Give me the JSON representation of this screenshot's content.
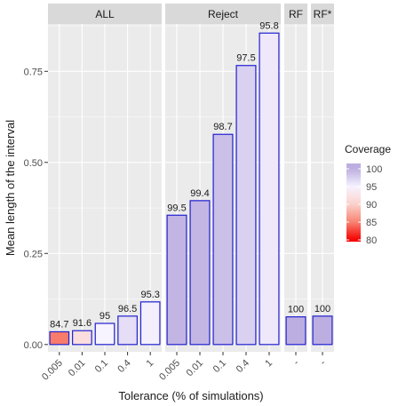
{
  "chart_data": {
    "type": "bar",
    "ylabel": "Mean length of the interval",
    "xlabel": "Tolerance (% of simulations)",
    "ylim": [
      -0.02,
      0.88
    ],
    "yticks": [
      0.0,
      0.25,
      0.5,
      0.75
    ],
    "ytick_labels": [
      "0.00",
      "0.25",
      "0.50",
      "0.75"
    ],
    "grid": true,
    "bar_outline_color": "#2020d0",
    "panel_background": "#ebebeb",
    "strip_background": "#d9d9d9",
    "facets": [
      {
        "label": "ALL",
        "categories": [
          "0.005",
          "0.01",
          "0.1",
          "0.4",
          "1"
        ],
        "values": [
          0.035,
          0.038,
          0.058,
          0.078,
          0.117
        ],
        "coverage": [
          84.7,
          91.6,
          95,
          96.5,
          95.3
        ],
        "bar_labels": [
          "84.7",
          "91.6",
          "95",
          "96.5",
          "95.3"
        ]
      },
      {
        "label": "Reject",
        "categories": [
          "0.005",
          "0.01",
          "0.1",
          "0.4",
          "1"
        ],
        "values": [
          0.355,
          0.395,
          0.577,
          0.766,
          0.855
        ],
        "coverage": [
          99.5,
          99.4,
          98.7,
          97.5,
          95.8
        ],
        "bar_labels": [
          "99.5",
          "99.4",
          "98.7",
          "97.5",
          "95.8"
        ]
      },
      {
        "label": "RF",
        "categories": [
          "-"
        ],
        "values": [
          0.076
        ],
        "coverage": [
          100
        ],
        "bar_labels": [
          "100"
        ]
      },
      {
        "label": "RF*",
        "categories": [
          "-"
        ],
        "values": [
          0.078
        ],
        "coverage": [
          100
        ],
        "bar_labels": [
          "100"
        ]
      }
    ],
    "legend": {
      "title": "Coverage",
      "position": "right",
      "breaks": [
        100,
        95,
        90,
        85,
        80
      ],
      "break_labels": [
        "100",
        "95",
        "90",
        "85",
        "80"
      ],
      "colors": [
        {
          "value": 100,
          "color": "#bcaee0"
        },
        {
          "value": 95,
          "color": "#f7f3ff"
        },
        {
          "value": 90,
          "color": "#fbd2cc"
        },
        {
          "value": 85,
          "color": "#f88372"
        },
        {
          "value": 80,
          "color": "#f50000"
        }
      ]
    }
  }
}
